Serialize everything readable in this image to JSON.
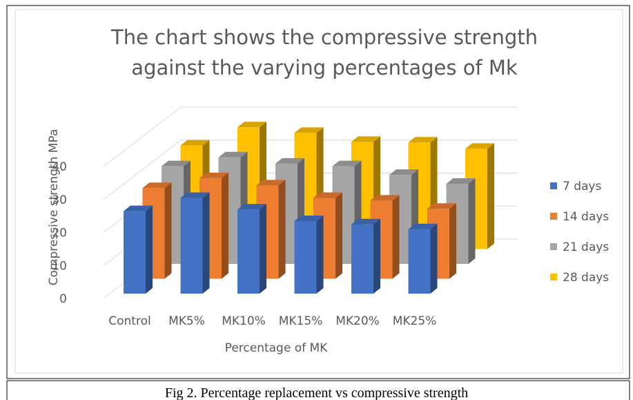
{
  "chart_data": {
    "type": "bar3d",
    "title": "The chart shows the compressive strength against the varying percentages of Mk",
    "x_label": "Percentage of MK",
    "y_label": "Compressive strength MPa",
    "caption": "Fig 2. Percentage replacement vs compressive strength",
    "categories": [
      "Control",
      "MK5%",
      "MK10%",
      "MK15%",
      "MK20%",
      "MK25%"
    ],
    "series": [
      {
        "name": "7 days",
        "color": "#4472c4",
        "values": [
          25,
          29,
          25.5,
          22,
          21,
          19.5
        ]
      },
      {
        "name": "14 days",
        "color": "#ed7d31",
        "values": [
          27.5,
          30.5,
          28.3,
          24.5,
          23.7,
          21.2
        ]
      },
      {
        "name": "21 days",
        "color": "#a5a5a5",
        "values": [
          29.6,
          32.3,
          30.4,
          29.6,
          27,
          24.3
        ]
      },
      {
        "name": "28 days",
        "color": "#ffc000",
        "values": [
          31.4,
          36.9,
          35.2,
          32.5,
          32.3,
          30.4
        ]
      }
    ],
    "ylim": [
      0,
      40
    ],
    "yticks": [
      0,
      10,
      20,
      30,
      40
    ],
    "grid": true,
    "legend": "right"
  }
}
